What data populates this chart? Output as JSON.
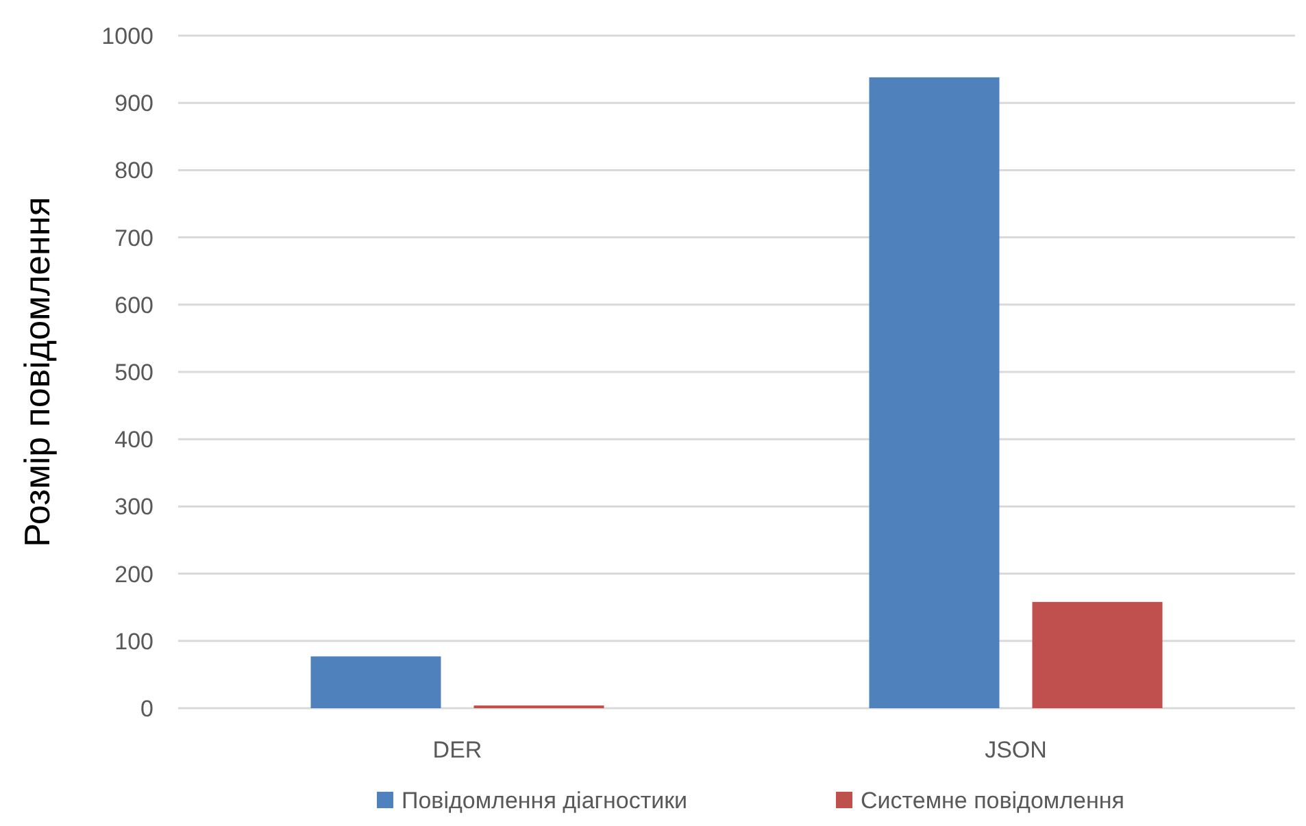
{
  "chart_data": {
    "type": "bar",
    "ylabel": "Розмір повідомлення",
    "categories": [
      "DER",
      "JSON"
    ],
    "series": [
      {
        "name": "Повідомлення діагностики",
        "color": "#4f81bd",
        "values": [
          77,
          938
        ]
      },
      {
        "name": "Системне повідомлення",
        "color": "#c0504d",
        "values": [
          4,
          158
        ]
      }
    ],
    "ylim": [
      0,
      1000
    ],
    "yticks": [
      0,
      100,
      200,
      300,
      400,
      500,
      600,
      700,
      800,
      900,
      1000
    ],
    "grid": "y",
    "legend": "bottom"
  }
}
